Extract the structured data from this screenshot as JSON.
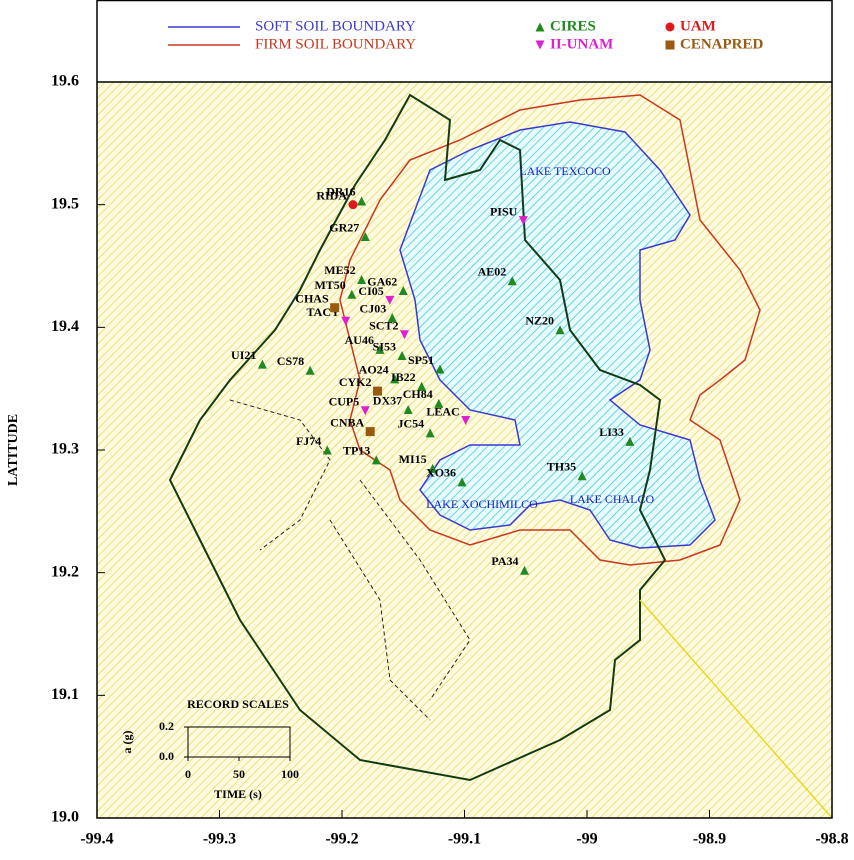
{
  "chart_data": {
    "type": "scatter",
    "y_label": "LATITUDE",
    "xlim": [
      -99.4,
      -98.8
    ],
    "ylim": [
      19.0,
      19.6
    ],
    "xticks": [
      -99.4,
      -99.3,
      -99.2,
      -99.1,
      -99.0,
      -98.9,
      -98.8
    ],
    "yticks": [
      {
        "value": 19.0,
        "label": "19.0"
      },
      19.1,
      19.2,
      19.3,
      19.4,
      19.5,
      19.6
    ],
    "boundaries": [
      {
        "name": "SOFT SOIL BOUNDARY",
        "color": "#3a3ad0"
      },
      {
        "name": "FIRM SOIL BOUNDARY",
        "color": "#c8381e"
      }
    ],
    "annotations": [
      "LAKE TEXCOCO",
      "LAKE XOCHIMILCO",
      "LAKE CHALCO"
    ],
    "series": [
      {
        "name": "CIRES",
        "color": "#1f8a1f",
        "marker": "triangle",
        "labels": [
          "DR16",
          "GR27",
          "ME52",
          "GA62",
          "MT50",
          "CJ03",
          "AU46",
          "SI53",
          "UI21",
          "CS78",
          "AO24",
          "SP51",
          "IB22",
          "CH84",
          "DX37",
          "JC54",
          "FJ74",
          "TP13",
          "MI15",
          "XO36",
          "LI33",
          "TH35",
          "PA34",
          "AE02",
          "NZ20"
        ],
        "x": [
          -99.184,
          -99.181,
          -99.184,
          -99.15,
          -99.192,
          -99.159,
          -99.169,
          -99.151,
          -99.265,
          -99.226,
          -99.157,
          -99.12,
          -99.135,
          -99.121,
          -99.146,
          -99.128,
          -99.212,
          -99.172,
          -99.126,
          -99.102,
          -98.965,
          -99.004,
          -99.051,
          -99.061,
          -99.022
        ],
        "values": [
          19.503,
          19.474,
          19.439,
          19.43,
          19.427,
          19.408,
          19.382,
          19.377,
          19.37,
          19.365,
          19.358,
          19.366,
          19.352,
          19.338,
          19.333,
          19.314,
          19.3,
          19.292,
          19.285,
          19.274,
          19.307,
          19.279,
          19.202,
          19.438,
          19.398
        ]
      },
      {
        "name": "II-UNAM",
        "color": "#e020d0",
        "marker": "triangle-down",
        "labels": [
          "CI05",
          "TACY",
          "SCT2",
          "CUP5",
          "LEAC",
          "PISU"
        ],
        "x": [
          -99.161,
          -99.197,
          -99.149,
          -99.181,
          -99.099,
          -99.052
        ],
        "values": [
          19.422,
          19.405,
          19.394,
          19.332,
          19.324,
          19.487
        ]
      },
      {
        "name": "UAM",
        "color": "#e01818",
        "marker": "circle",
        "labels": [
          "RIDA"
        ],
        "x": [
          -99.191
        ],
        "values": [
          19.5
        ]
      },
      {
        "name": "CENAPRED",
        "color": "#9a5a10",
        "marker": "square",
        "labels": [
          "CHAS",
          "CYK2",
          "CNBA"
        ],
        "x": [
          -99.206,
          -99.171,
          -99.177
        ],
        "values": [
          19.416,
          19.348,
          19.315
        ]
      }
    ],
    "record_scales": {
      "title": "RECORD SCALES",
      "y_label": "a (g)",
      "x_label": "TIME (s)",
      "yticks": [
        {
          "value": 0.0,
          "label": "0.0"
        },
        0.2
      ],
      "xticks": [
        0,
        50,
        100
      ]
    }
  }
}
